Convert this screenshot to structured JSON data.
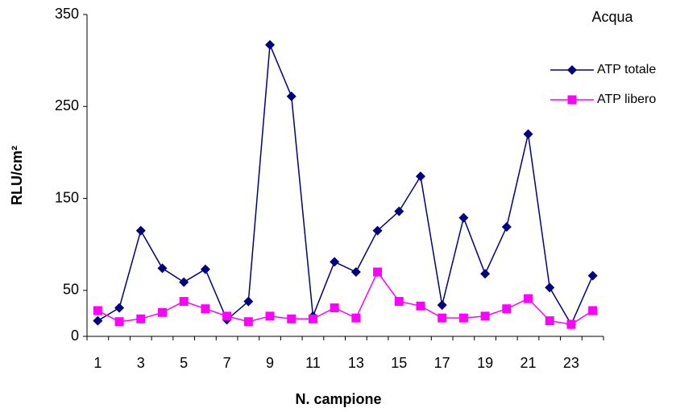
{
  "chart_data": {
    "type": "line",
    "annotation": "Acqua",
    "x_label": "N. campione",
    "y_label": "RLU/cm²",
    "categories": [
      "1",
      null,
      "3",
      null,
      "5",
      null,
      "7",
      null,
      "9",
      null,
      "11",
      null,
      "13",
      null,
      "15",
      null,
      "17",
      null,
      "19",
      null,
      "21",
      null,
      "23",
      null
    ],
    "series": [
      {
        "name": "ATP totale",
        "color": "#000080",
        "marker": "diamond",
        "values": [
          17,
          31,
          115,
          74,
          59,
          73,
          18,
          38,
          317,
          261,
          22,
          81,
          70,
          115,
          136,
          174,
          34,
          129,
          68,
          119,
          220,
          53,
          13,
          66
        ]
      },
      {
        "name": "ATP libero",
        "color": "#ff00ff",
        "marker": "square",
        "values": [
          28,
          16,
          19,
          26,
          38,
          30,
          22,
          16,
          22,
          19,
          19,
          31,
          20,
          70,
          38,
          33,
          20,
          20,
          22,
          30,
          41,
          17,
          13,
          28
        ]
      }
    ],
    "ylim": [
      0,
      350
    ],
    "yticks": [
      0,
      50,
      150,
      250,
      350
    ],
    "grid": false,
    "legend": "right"
  }
}
